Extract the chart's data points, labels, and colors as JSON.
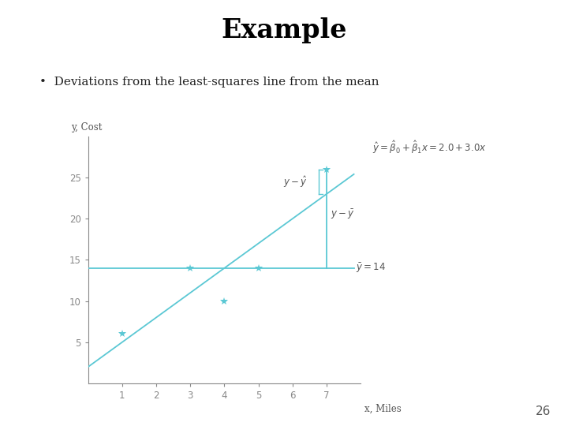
{
  "title": "Example",
  "bullet_text": "Deviations from the least-squares line from the mean",
  "xlabel": "x, Miles",
  "ylabel": "y, Cost",
  "x_data": [
    1,
    3,
    4,
    5,
    7
  ],
  "y_data": [
    6,
    14,
    10,
    14,
    26
  ],
  "regression_intercept": 2.0,
  "regression_slope": 3.0,
  "mean_y": 14,
  "regression_label": "$\\hat{y} = \\hat{\\beta}_0 + \\hat{\\beta}_1 x = 2.0 + 3.0x$",
  "mean_label": "$\\bar{y}= 14$",
  "y_minus_yhat_label": "$y - \\hat{y}$",
  "y_minus_ybar_label": "$y - \\bar{y}$",
  "highlight_x": 7,
  "highlight_y": 26,
  "xlim": [
    0,
    8
  ],
  "ylim": [
    0,
    30
  ],
  "xticks": [
    1,
    2,
    3,
    4,
    5,
    6,
    7
  ],
  "yticks": [
    5,
    10,
    15,
    20,
    25
  ],
  "data_color": "#5BC8D4",
  "line_color": "#5BC8D4",
  "mean_color": "#5BC8D4",
  "vline_color": "#5BC8D4",
  "page_number": "26",
  "axis_color": "#888888",
  "text_color": "#555555",
  "fig_bg": "#ffffff"
}
